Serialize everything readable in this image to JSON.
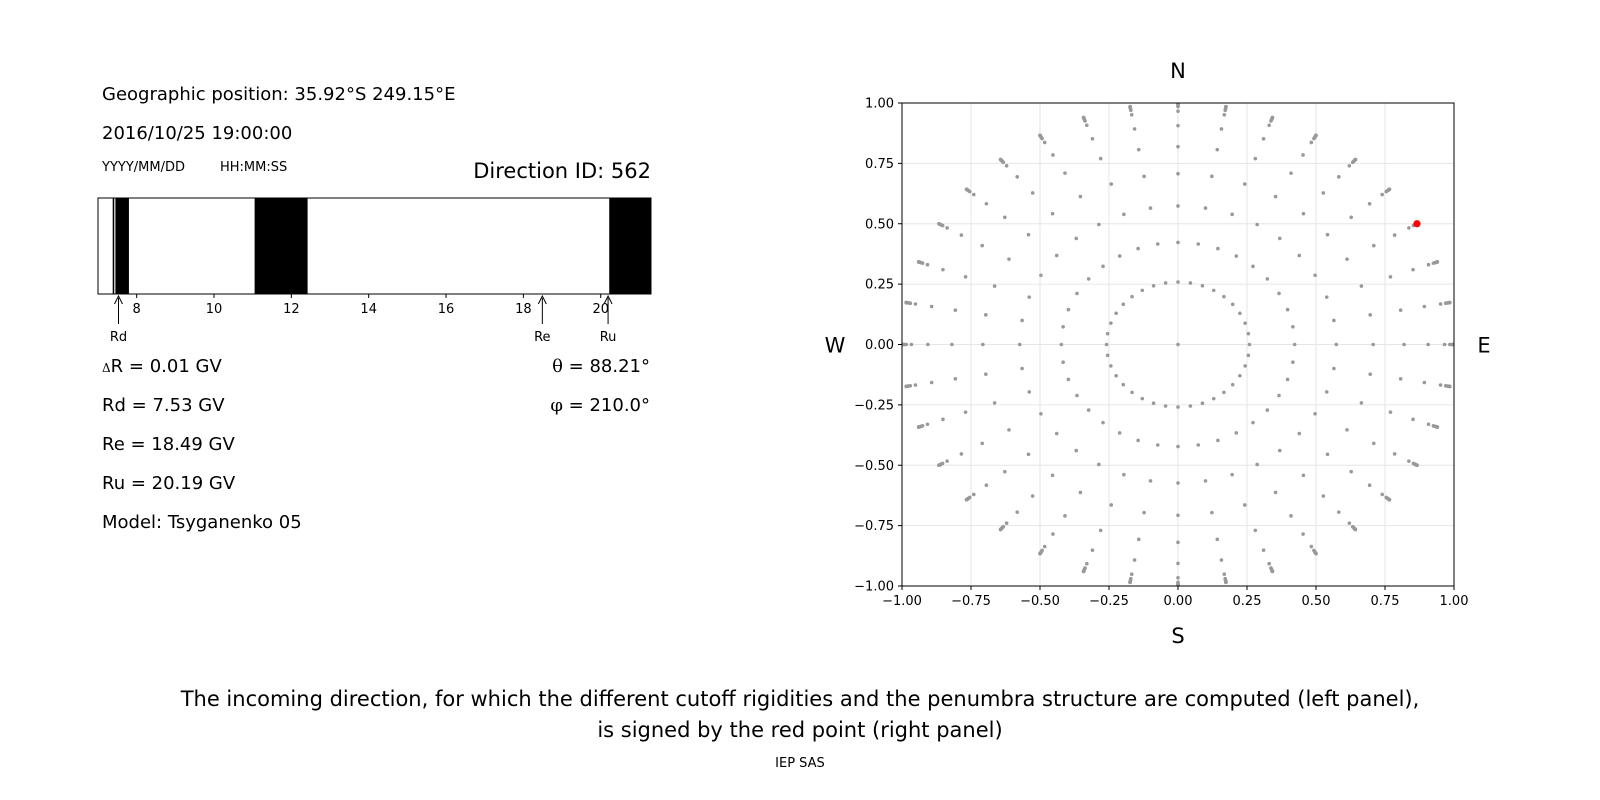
{
  "info": {
    "geo_position": "Geographic position: 35.92°S 249.15°E",
    "datetime": "2016/10/25 19:00:00",
    "date_format": "YYYY/MM/DD",
    "time_format": "HH:MM:SS",
    "direction_id": "Direction ID: 562"
  },
  "stats": {
    "delta_prefix": "Δ",
    "delta_r": "R = 0.01 GV",
    "rd": "Rd = 7.53 GV",
    "re": "Re = 18.49 GV",
    "ru": "Ru = 20.19 GV",
    "model": "Model: Tsyganenko 05",
    "theta_sym": "θ",
    "theta_val": " = 88.21°",
    "phi_sym": "φ",
    "phi_val": " = 210.0°"
  },
  "caption": {
    "line1": "The incoming direction, for which the different cutoff rigidities and the penumbra structure are computed (left panel),",
    "line2": "is signed by the red point (right panel)",
    "credit": "IEP SAS"
  },
  "chart_data": [
    {
      "type": "penumbra-bar",
      "xlim": [
        7.0,
        21.3
      ],
      "ticks": [
        8,
        10,
        12,
        14,
        16,
        18,
        20
      ],
      "forbidden_bands": [
        [
          7.38,
          7.42
        ],
        [
          7.45,
          7.8
        ],
        [
          11.05,
          12.42
        ],
        [
          20.22,
          21.3
        ]
      ],
      "markers": [
        {
          "label": "Rd",
          "value": 7.53
        },
        {
          "label": "Re",
          "value": 18.49
        },
        {
          "label": "Ru",
          "value": 20.19
        }
      ]
    },
    {
      "type": "scatter",
      "xlim": [
        -1.0,
        1.0
      ],
      "ylim": [
        -1.0,
        1.0
      ],
      "xticks": [
        -1.0,
        -0.75,
        -0.5,
        -0.25,
        0.0,
        0.25,
        0.5,
        0.75,
        1.0
      ],
      "yticks": [
        -1.0,
        -0.75,
        -0.5,
        -0.25,
        0.0,
        0.25,
        0.5,
        0.75,
        1.0
      ],
      "xtick_labels": [
        "−1.00",
        "−0.75",
        "−0.50",
        "−0.25",
        "0.00",
        "0.25",
        "0.50",
        "0.75",
        "1.00"
      ],
      "ytick_labels": [
        "−1.00",
        "−0.75",
        "−0.50",
        "−0.25",
        "0.00",
        "0.25",
        "0.50",
        "0.75",
        "1.00"
      ],
      "grid": true,
      "compass": {
        "north": "N",
        "south": "S",
        "west": "W",
        "east": "E"
      },
      "grid_directions": {
        "center": [
          0,
          0
        ],
        "theta_deg": [
          15,
          25,
          35,
          45,
          55,
          65,
          75,
          80,
          82,
          84,
          86,
          88,
          89,
          90
        ],
        "phi_step_deg": 10
      },
      "highlight": {
        "x": 0.866,
        "y": 0.5
      },
      "point_color": "#999999",
      "highlight_color": "#ff0000"
    }
  ]
}
